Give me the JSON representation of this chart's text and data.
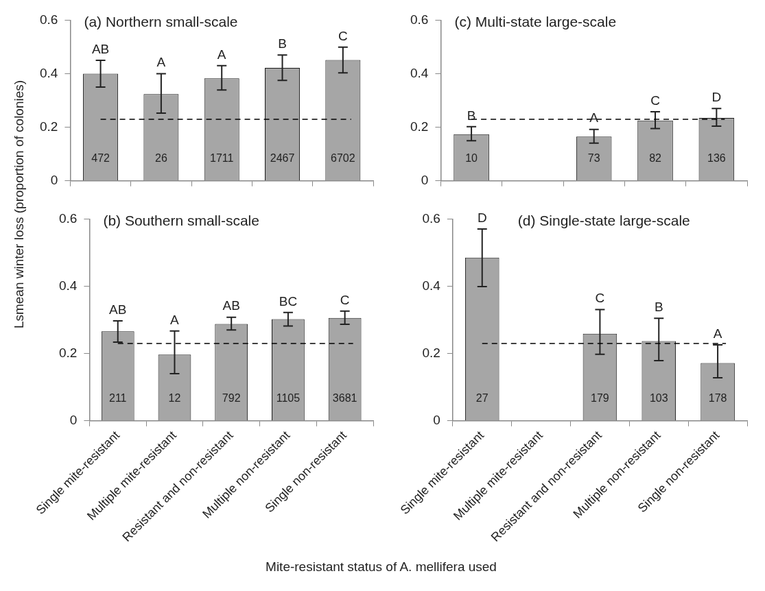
{
  "chart_data": [
    {
      "type": "bar",
      "title": "(a) Northern small-scale",
      "ylabel": "Lsmean winter loss (proportion of colonies)",
      "categories": [
        null,
        null,
        null,
        null,
        null
      ],
      "values": [
        0.4,
        0.324,
        0.383,
        0.422,
        0.451
      ],
      "errors": [
        [
          0.35,
          0.45
        ],
        [
          0.253,
          0.4
        ],
        [
          0.339,
          0.43
        ],
        [
          0.375,
          0.47
        ],
        [
          0.403,
          0.499
        ]
      ],
      "color": "#a6a6a6",
      "ylim": [
        0,
        0.6
      ],
      "yticks": [
        0,
        0.2,
        0.4,
        0.6
      ],
      "grid": false,
      "ref_lines": [
        {
          "axis": "y",
          "value": 0.23,
          "label": null,
          "color": "#000000",
          "line_style": "dashed"
        }
      ],
      "annotations": [
        "AB",
        "A",
        "A",
        "B",
        "C",
        "472",
        "26",
        "1711",
        "2467",
        "6702"
      ]
    },
    {
      "type": "bar",
      "title": "(c) Multi-state large-scale",
      "categories": [
        null,
        null,
        null,
        null,
        null
      ],
      "values": [
        0.174,
        null,
        0.165,
        0.225,
        0.235
      ],
      "errors": [
        [
          0.15,
          0.202
        ],
        null,
        [
          0.141,
          0.192
        ],
        [
          0.195,
          0.258
        ],
        [
          0.204,
          0.27
        ]
      ],
      "color": "#a6a6a6",
      "ylim": [
        0,
        0.6
      ],
      "yticks": [
        0,
        0.2,
        0.4,
        0.6
      ],
      "grid": false,
      "ref_lines": [
        {
          "axis": "y",
          "value": 0.23,
          "label": null,
          "color": "#000000",
          "line_style": "dashed"
        }
      ],
      "annotations": [
        "B",
        "A",
        "C",
        "D",
        "10",
        "73",
        "82",
        "136"
      ]
    },
    {
      "type": "bar",
      "title": "(b) Southern small-scale",
      "xlabel": "Mite-resistant status of A. mellifera used",
      "categories": [
        "Single mite-resistant",
        "Multiple mite-resistant",
        "Resistant and non-resistant",
        "Multiple non-resistant",
        "Single non-resistant"
      ],
      "values": [
        0.266,
        0.197,
        0.288,
        0.302,
        0.306
      ],
      "errors": [
        [
          0.234,
          0.297
        ],
        [
          0.14,
          0.267
        ],
        [
          0.27,
          0.308
        ],
        [
          0.282,
          0.322
        ],
        [
          0.287,
          0.326
        ]
      ],
      "color": "#a6a6a6",
      "ylim": [
        0,
        0.6
      ],
      "yticks": [
        0,
        0.2,
        0.4,
        0.6
      ],
      "grid": false,
      "ref_lines": [
        {
          "axis": "y",
          "value": 0.23,
          "label": null,
          "color": "#000000",
          "line_style": "dashed"
        }
      ],
      "annotations": [
        "AB",
        "A",
        "AB",
        "BC",
        "C",
        "211",
        "12",
        "792",
        "1105",
        "3681"
      ]
    },
    {
      "type": "bar",
      "title": "(d) Single-state large-scale",
      "categories": [
        "Single mite-resistant",
        "Multiple mite-resistant",
        "Resistant and non-resistant",
        "Multiple non-resistant",
        "Single non-resistant"
      ],
      "values": [
        0.485,
        null,
        0.259,
        0.237,
        0.172
      ],
      "errors": [
        [
          0.399,
          0.57
        ],
        null,
        [
          0.198,
          0.331
        ],
        [
          0.179,
          0.305
        ],
        [
          0.128,
          0.226
        ]
      ],
      "color": "#a6a6a6",
      "ylim": [
        0,
        0.6
      ],
      "yticks": [
        0,
        0.2,
        0.4,
        0.6
      ],
      "grid": false,
      "ref_lines": [
        {
          "axis": "y",
          "value": 0.23,
          "label": null,
          "color": "#000000",
          "line_style": "dashed"
        }
      ],
      "annotations": [
        "D",
        "C",
        "B",
        "A",
        "27",
        "179",
        "103",
        "178"
      ]
    }
  ]
}
